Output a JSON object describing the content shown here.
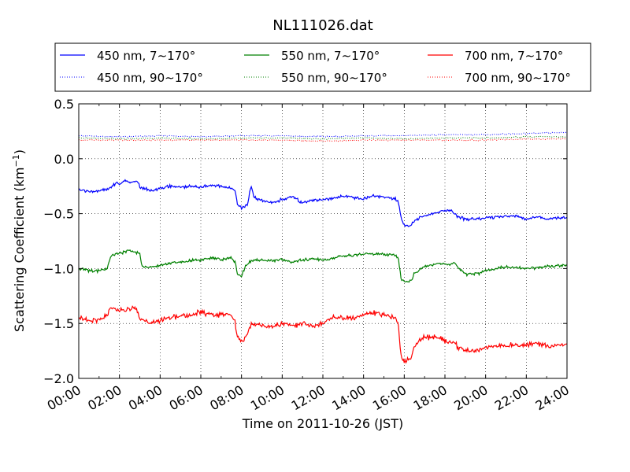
{
  "chart_data": {
    "type": "line",
    "title": "NL111026.dat",
    "xlabel": "Time on 2011-10-26 (JST)",
    "ylabel": "Scattering Coefficient (km",
    "ylabel_sup": "−1",
    "ylabel_close": ")",
    "xlim_hours": [
      0,
      24
    ],
    "ylim": [
      -2.0,
      0.5
    ],
    "grid": true,
    "legend_placement": "top (above plot, 3 columns)",
    "x_ticks": [
      "00:00",
      "02:00",
      "04:00",
      "06:00",
      "08:00",
      "10:00",
      "12:00",
      "14:00",
      "16:00",
      "18:00",
      "20:00",
      "22:00",
      "24:00"
    ],
    "y_ticks": [
      "0.5",
      "0.0",
      "−0.5",
      "−1.0",
      "−1.5",
      "−2.0"
    ],
    "y_tick_values": [
      0.5,
      0.0,
      -0.5,
      -1.0,
      -1.5,
      -2.0
    ],
    "series": [
      {
        "name": "450 nm, 7∼170°",
        "color": "#0000ff",
        "style": "solid",
        "noise": 0.02,
        "points": [
          [
            0,
            -0.28
          ],
          [
            0.5,
            -0.3
          ],
          [
            1,
            -0.29
          ],
          [
            1.5,
            -0.27
          ],
          [
            1.8,
            -0.22
          ],
          [
            2,
            -0.23
          ],
          [
            2.3,
            -0.2
          ],
          [
            2.6,
            -0.22
          ],
          [
            2.9,
            -0.2
          ],
          [
            3.0,
            -0.26
          ],
          [
            3.5,
            -0.29
          ],
          [
            4,
            -0.27
          ],
          [
            4.5,
            -0.25
          ],
          [
            5,
            -0.26
          ],
          [
            5.5,
            -0.25
          ],
          [
            6,
            -0.26
          ],
          [
            6.5,
            -0.24
          ],
          [
            7,
            -0.25
          ],
          [
            7.5,
            -0.27
          ],
          [
            7.7,
            -0.3
          ],
          [
            7.8,
            -0.42
          ],
          [
            8.0,
            -0.45
          ],
          [
            8.3,
            -0.42
          ],
          [
            8.4,
            -0.3
          ],
          [
            8.5,
            -0.25
          ],
          [
            8.6,
            -0.35
          ],
          [
            9,
            -0.38
          ],
          [
            9.5,
            -0.4
          ],
          [
            10,
            -0.37
          ],
          [
            10.5,
            -0.35
          ],
          [
            11,
            -0.4
          ],
          [
            11.5,
            -0.38
          ],
          [
            12,
            -0.37
          ],
          [
            12.5,
            -0.36
          ],
          [
            13,
            -0.34
          ],
          [
            13.5,
            -0.35
          ],
          [
            14,
            -0.36
          ],
          [
            14.5,
            -0.34
          ],
          [
            15,
            -0.35
          ],
          [
            15.5,
            -0.36
          ],
          [
            15.7,
            -0.38
          ],
          [
            15.85,
            -0.55
          ],
          [
            16,
            -0.6
          ],
          [
            16.3,
            -0.61
          ],
          [
            16.6,
            -0.55
          ],
          [
            17,
            -0.52
          ],
          [
            17.5,
            -0.5
          ],
          [
            18,
            -0.47
          ],
          [
            18.3,
            -0.47
          ],
          [
            18.6,
            -0.52
          ],
          [
            19,
            -0.55
          ],
          [
            19.5,
            -0.55
          ],
          [
            20,
            -0.54
          ],
          [
            20.5,
            -0.53
          ],
          [
            21,
            -0.52
          ],
          [
            21.5,
            -0.52
          ],
          [
            22,
            -0.55
          ],
          [
            22.5,
            -0.53
          ],
          [
            23,
            -0.55
          ],
          [
            23.5,
            -0.54
          ],
          [
            24,
            -0.53
          ]
        ]
      },
      {
        "name": "450 nm, 90∼170°",
        "color": "#0000ff",
        "style": "dotted",
        "noise": 0.008,
        "points": [
          [
            0,
            0.21
          ],
          [
            2,
            0.2
          ],
          [
            4,
            0.21
          ],
          [
            6,
            0.2
          ],
          [
            8,
            0.21
          ],
          [
            10,
            0.21
          ],
          [
            12,
            0.2
          ],
          [
            14,
            0.21
          ],
          [
            16,
            0.21
          ],
          [
            18,
            0.22
          ],
          [
            20,
            0.22
          ],
          [
            22,
            0.23
          ],
          [
            24,
            0.24
          ]
        ]
      },
      {
        "name": "550 nm, 7∼170°",
        "color": "#008000",
        "style": "solid",
        "noise": 0.02,
        "points": [
          [
            0,
            -1.0
          ],
          [
            0.5,
            -1.02
          ],
          [
            1,
            -1.02
          ],
          [
            1.4,
            -1.0
          ],
          [
            1.6,
            -0.88
          ],
          [
            2,
            -0.86
          ],
          [
            2.5,
            -0.84
          ],
          [
            3.0,
            -0.86
          ],
          [
            3.1,
            -0.98
          ],
          [
            3.5,
            -0.99
          ],
          [
            4,
            -0.97
          ],
          [
            4.5,
            -0.95
          ],
          [
            5,
            -0.94
          ],
          [
            5.5,
            -0.93
          ],
          [
            6,
            -0.92
          ],
          [
            6.5,
            -0.9
          ],
          [
            7,
            -0.92
          ],
          [
            7.5,
            -0.9
          ],
          [
            7.7,
            -0.94
          ],
          [
            7.8,
            -1.05
          ],
          [
            8,
            -1.07
          ],
          [
            8.2,
            -0.97
          ],
          [
            8.5,
            -0.93
          ],
          [
            9,
            -0.92
          ],
          [
            9.5,
            -0.93
          ],
          [
            10,
            -0.92
          ],
          [
            10.5,
            -0.94
          ],
          [
            11,
            -0.92
          ],
          [
            11.5,
            -0.91
          ],
          [
            12,
            -0.92
          ],
          [
            12.5,
            -0.91
          ],
          [
            13,
            -0.88
          ],
          [
            13.5,
            -0.88
          ],
          [
            14,
            -0.87
          ],
          [
            14.5,
            -0.86
          ],
          [
            15,
            -0.87
          ],
          [
            15.5,
            -0.87
          ],
          [
            15.7,
            -0.9
          ],
          [
            15.85,
            -1.1
          ],
          [
            16,
            -1.12
          ],
          [
            16.3,
            -1.12
          ],
          [
            16.5,
            -1.05
          ],
          [
            17,
            -0.98
          ],
          [
            17.5,
            -0.96
          ],
          [
            18,
            -0.96
          ],
          [
            18.5,
            -0.95
          ],
          [
            18.7,
            -1.0
          ],
          [
            19,
            -1.05
          ],
          [
            19.5,
            -1.05
          ],
          [
            20,
            -1.02
          ],
          [
            20.5,
            -1.0
          ],
          [
            21,
            -0.99
          ],
          [
            21.5,
            -0.99
          ],
          [
            22,
            -1.0
          ],
          [
            22.5,
            -0.99
          ],
          [
            23,
            -0.98
          ],
          [
            23.5,
            -0.98
          ],
          [
            24,
            -0.97
          ]
        ]
      },
      {
        "name": "550 nm, 90∼170°",
        "color": "#008000",
        "style": "dotted",
        "noise": 0.008,
        "points": [
          [
            0,
            0.19
          ],
          [
            2,
            0.18
          ],
          [
            4,
            0.19
          ],
          [
            6,
            0.18
          ],
          [
            8,
            0.19
          ],
          [
            10,
            0.19
          ],
          [
            12,
            0.18
          ],
          [
            14,
            0.19
          ],
          [
            16,
            0.18
          ],
          [
            18,
            0.19
          ],
          [
            20,
            0.19
          ],
          [
            22,
            0.2
          ],
          [
            24,
            0.2
          ]
        ]
      },
      {
        "name": "700 nm, 7∼170°",
        "color": "#ff0000",
        "style": "solid",
        "noise": 0.035,
        "points": [
          [
            0,
            -1.45
          ],
          [
            0.5,
            -1.47
          ],
          [
            1,
            -1.47
          ],
          [
            1.4,
            -1.43
          ],
          [
            1.6,
            -1.35
          ],
          [
            2,
            -1.38
          ],
          [
            2.5,
            -1.37
          ],
          [
            2.8,
            -1.35
          ],
          [
            3.0,
            -1.45
          ],
          [
            3.5,
            -1.5
          ],
          [
            4,
            -1.47
          ],
          [
            4.5,
            -1.45
          ],
          [
            5,
            -1.43
          ],
          [
            5.5,
            -1.42
          ],
          [
            6,
            -1.4
          ],
          [
            6.5,
            -1.42
          ],
          [
            7,
            -1.42
          ],
          [
            7.5,
            -1.43
          ],
          [
            7.7,
            -1.5
          ],
          [
            7.8,
            -1.62
          ],
          [
            8,
            -1.67
          ],
          [
            8.3,
            -1.6
          ],
          [
            8.5,
            -1.5
          ],
          [
            9,
            -1.52
          ],
          [
            9.5,
            -1.53
          ],
          [
            10,
            -1.5
          ],
          [
            10.5,
            -1.52
          ],
          [
            11,
            -1.5
          ],
          [
            11.5,
            -1.52
          ],
          [
            12,
            -1.5
          ],
          [
            12.5,
            -1.45
          ],
          [
            13,
            -1.45
          ],
          [
            13.5,
            -1.45
          ],
          [
            14,
            -1.42
          ],
          [
            14.5,
            -1.4
          ],
          [
            15,
            -1.42
          ],
          [
            15.5,
            -1.44
          ],
          [
            15.7,
            -1.5
          ],
          [
            15.85,
            -1.8
          ],
          [
            16,
            -1.85
          ],
          [
            16.3,
            -1.83
          ],
          [
            16.5,
            -1.7
          ],
          [
            17,
            -1.62
          ],
          [
            17.5,
            -1.63
          ],
          [
            18,
            -1.65
          ],
          [
            18.5,
            -1.68
          ],
          [
            18.7,
            -1.72
          ],
          [
            19,
            -1.75
          ],
          [
            19.5,
            -1.75
          ],
          [
            20,
            -1.72
          ],
          [
            20.5,
            -1.7
          ],
          [
            21,
            -1.7
          ],
          [
            21.5,
            -1.69
          ],
          [
            22,
            -1.7
          ],
          [
            22.5,
            -1.68
          ],
          [
            23,
            -1.7
          ],
          [
            23.5,
            -1.7
          ],
          [
            24,
            -1.7
          ]
        ]
      },
      {
        "name": "700 nm, 90∼170°",
        "color": "#ff0000",
        "style": "dotted",
        "noise": 0.008,
        "points": [
          [
            0,
            0.17
          ],
          [
            2,
            0.17
          ],
          [
            4,
            0.17
          ],
          [
            6,
            0.17
          ],
          [
            8,
            0.17
          ],
          [
            10,
            0.17
          ],
          [
            12,
            0.16
          ],
          [
            14,
            0.17
          ],
          [
            16,
            0.17
          ],
          [
            18,
            0.17
          ],
          [
            20,
            0.17
          ],
          [
            22,
            0.18
          ],
          [
            24,
            0.18
          ]
        ]
      }
    ]
  }
}
